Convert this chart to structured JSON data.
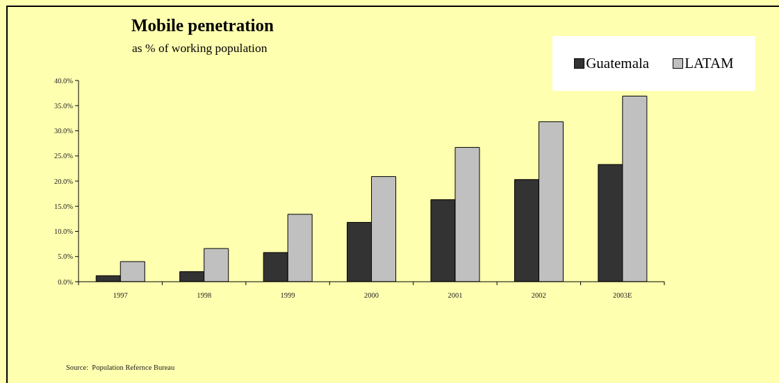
{
  "chart_data": {
    "type": "bar",
    "title": "Mobile penetration",
    "subtitle": "as % of working population",
    "categories": [
      "1997",
      "1998",
      "1999",
      "2000",
      "2001",
      "2002",
      "2003E"
    ],
    "series": [
      {
        "name": "Guatemala",
        "color": "#333333",
        "values": [
          1.2,
          2.0,
          5.8,
          11.8,
          16.3,
          20.3,
          23.3
        ]
      },
      {
        "name": "LATAM",
        "color": "#c0c0c0",
        "values": [
          4.0,
          6.6,
          13.4,
          20.9,
          26.7,
          31.8,
          36.9
        ]
      }
    ],
    "ylim": [
      0,
      40
    ],
    "yticks": [
      {
        "value": 0,
        "label": "0.0%"
      },
      {
        "value": 5,
        "label": "5.0%"
      },
      {
        "value": 10,
        "label": "10.0%"
      },
      {
        "value": 15,
        "label": "15.0%"
      },
      {
        "value": 20,
        "label": "20.0%"
      },
      {
        "value": 25,
        "label": "25.0%"
      },
      {
        "value": 30,
        "label": "30.0%"
      },
      {
        "value": 35,
        "label": "35.0%"
      },
      {
        "value": 40,
        "label": "40.0%"
      }
    ],
    "legend": "top right",
    "annotations": [
      "Source:  Population Refernce Bureau"
    ]
  }
}
